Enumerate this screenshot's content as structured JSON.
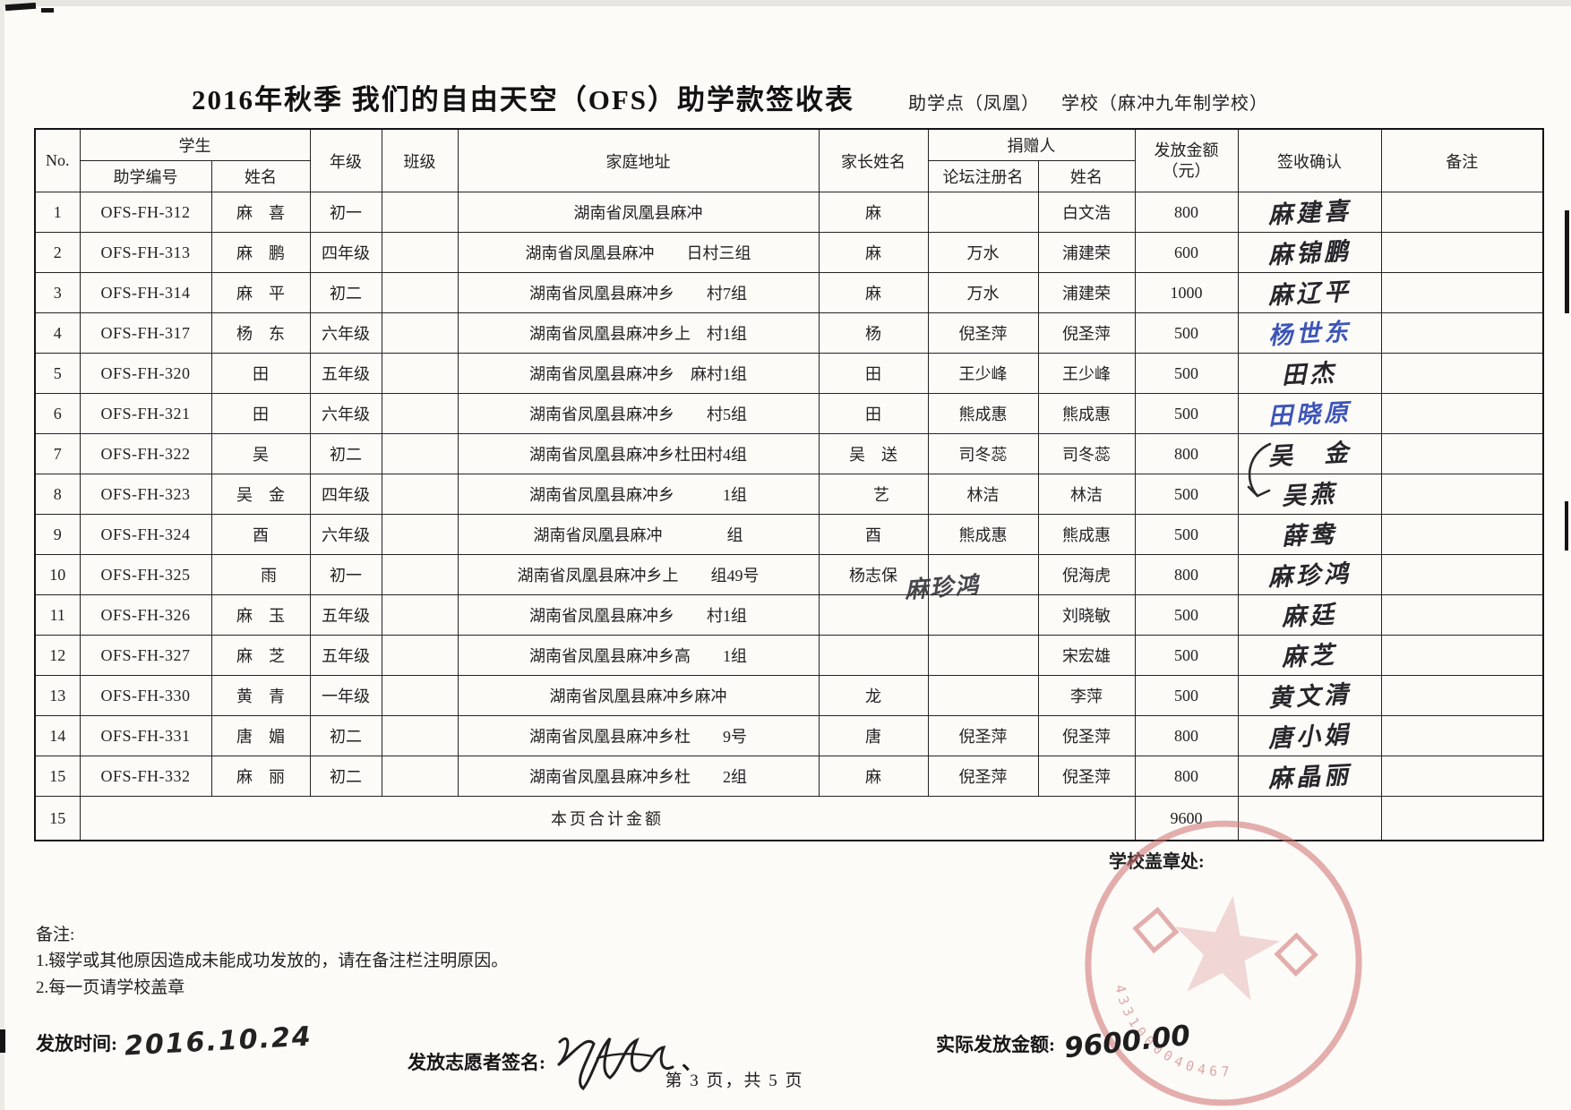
{
  "page": {
    "title": "2016年秋季 我们的自由天空（OFS）助学款签收表",
    "site_label": "助学点（凤凰）",
    "school_label": "学校（麻冲九年制学校）",
    "page_footer": "第 3 页，共 5 页"
  },
  "table": {
    "headers": {
      "no": "No.",
      "student": "学生",
      "student_id": "助学编号",
      "student_name": "姓名",
      "grade": "年级",
      "class": "班级",
      "address": "家庭地址",
      "parent_name": "家长姓名",
      "donor": "捐赠人",
      "donor_forum": "论坛注册名",
      "donor_name": "姓名",
      "amount_line1": "发放金额",
      "amount_line2": "（元）",
      "sign": "签收确认",
      "remark": "备注"
    },
    "rows": [
      {
        "no": "1",
        "id": "OFS-FH-312",
        "name": "麻　喜",
        "grade": "初一",
        "cls": "",
        "address": "湖南省凤凰县麻冲　　　　　",
        "parent": "麻　",
        "forum": "",
        "donor": "白文浩",
        "amount": "800",
        "signature": "麻建喜",
        "ink": "black",
        "remark": ""
      },
      {
        "no": "2",
        "id": "OFS-FH-313",
        "name": "麻　鹏",
        "grade": "四年级",
        "cls": "",
        "address": "湖南省凤凰县麻冲　　日村三组",
        "parent": "麻　",
        "forum": "万水",
        "donor": "浦建荣",
        "amount": "600",
        "signature": "麻锦鹏",
        "ink": "black",
        "remark": ""
      },
      {
        "no": "3",
        "id": "OFS-FH-314",
        "name": "麻　平",
        "grade": "初二",
        "cls": "",
        "address": "湖南省凤凰县麻冲乡　　村7组",
        "parent": "麻　",
        "forum": "万水",
        "donor": "浦建荣",
        "amount": "1000",
        "signature": "麻辽平",
        "ink": "black",
        "remark": ""
      },
      {
        "no": "4",
        "id": "OFS-FH-317",
        "name": "杨　东",
        "grade": "六年级",
        "cls": "",
        "address": "湖南省凤凰县麻冲乡上　村1组",
        "parent": "杨　",
        "forum": "倪圣萍",
        "donor": "倪圣萍",
        "amount": "500",
        "signature": "杨世东",
        "ink": "blue",
        "remark": ""
      },
      {
        "no": "5",
        "id": "OFS-FH-320",
        "name": "田　",
        "grade": "五年级",
        "cls": "",
        "address": "湖南省凤凰县麻冲乡　麻村1组",
        "parent": "田　",
        "forum": "王少峰",
        "donor": "王少峰",
        "amount": "500",
        "signature": "田杰",
        "ink": "black",
        "remark": ""
      },
      {
        "no": "6",
        "id": "OFS-FH-321",
        "name": "田　",
        "grade": "六年级",
        "cls": "",
        "address": "湖南省凤凰县麻冲乡　　村5组",
        "parent": "田　",
        "forum": "熊成惠",
        "donor": "熊成惠",
        "amount": "500",
        "signature": "田晓原",
        "ink": "blue",
        "remark": ""
      },
      {
        "no": "7",
        "id": "OFS-FH-322",
        "name": "吴　",
        "grade": "初二",
        "cls": "",
        "address": "湖南省凤凰县麻冲乡杜田村4组",
        "parent": "吴　送",
        "forum": "司冬蕊",
        "donor": "司冬蕊",
        "amount": "800",
        "signature": "吴　金",
        "ink": "black",
        "remark": ""
      },
      {
        "no": "8",
        "id": "OFS-FH-323",
        "name": "吴　金",
        "grade": "四年级",
        "cls": "",
        "address": "湖南省凤凰县麻冲乡　　　1组",
        "parent": "　艺",
        "forum": "林洁",
        "donor": "林洁",
        "amount": "500",
        "signature": "吴燕",
        "ink": "black",
        "remark": ""
      },
      {
        "no": "9",
        "id": "OFS-FH-324",
        "name": "酉　",
        "grade": "六年级",
        "cls": "",
        "address": "湖南省凤凰县麻冲　　　　组",
        "parent": "酉　",
        "forum": "熊成惠",
        "donor": "熊成惠",
        "amount": "500",
        "signature": "薛鸯",
        "ink": "black",
        "remark": ""
      },
      {
        "no": "10",
        "id": "OFS-FH-325",
        "name": "　雨",
        "grade": "初一",
        "cls": "",
        "address": "湖南省凤凰县麻冲乡上　　组49号",
        "parent": "杨志保",
        "forum": "",
        "forum_hw": "麻珍鸿",
        "donor": "倪海虎",
        "amount": "800",
        "signature": "麻珍鸿",
        "ink": "black",
        "remark": ""
      },
      {
        "no": "11",
        "id": "OFS-FH-326",
        "name": "麻　玉",
        "grade": "五年级",
        "cls": "",
        "address": "湖南省凤凰县麻冲乡　　村1组",
        "parent": "",
        "forum": "",
        "donor": "刘晓敏",
        "amount": "500",
        "signature": "麻廷",
        "ink": "black",
        "remark": ""
      },
      {
        "no": "12",
        "id": "OFS-FH-327",
        "name": "麻　芝",
        "grade": "五年级",
        "cls": "",
        "address": "湖南省凤凰县麻冲乡高　　1组",
        "parent": "",
        "forum": "",
        "donor": "宋宏雄",
        "amount": "500",
        "signature": "麻芝",
        "ink": "black",
        "remark": ""
      },
      {
        "no": "13",
        "id": "OFS-FH-330",
        "name": "黄　青",
        "grade": "一年级",
        "cls": "",
        "address": "湖南省凤凰县麻冲乡麻冲　　",
        "parent": "龙　",
        "forum": "",
        "donor": "李萍",
        "amount": "500",
        "signature": "黄文清",
        "ink": "black",
        "remark": ""
      },
      {
        "no": "14",
        "id": "OFS-FH-331",
        "name": "唐　媚",
        "grade": "初二",
        "cls": "",
        "address": "湖南省凤凰县麻冲乡杜　　9号",
        "parent": "唐　",
        "forum": "倪圣萍",
        "donor": "倪圣萍",
        "amount": "800",
        "signature": "唐小娟",
        "ink": "black",
        "remark": ""
      },
      {
        "no": "15",
        "id": "OFS-FH-332",
        "name": "麻　丽",
        "grade": "初二",
        "cls": "",
        "address": "湖南省凤凰县麻冲乡杜　　2组",
        "parent": "麻　",
        "forum": "倪圣萍",
        "donor": "倪圣萍",
        "amount": "800",
        "signature": "麻晶丽",
        "ink": "black",
        "remark": ""
      }
    ],
    "total": {
      "no": "15",
      "label": "本页合计金额",
      "amount": "9600"
    }
  },
  "notes": {
    "title": "备注:",
    "line1": "1.辍学或其他原因造成未能成功发放的，请在备注栏注明原因。",
    "line2": "2.每一页请学校盖章"
  },
  "footer": {
    "issue_time_label": "发放时间:",
    "issue_time_value": "2016.10.24",
    "volunteer_label": "发放志愿者签名:",
    "volunteer_comma": "、",
    "school_stamp_label": "学校盖章处:",
    "actual_amount_label": "实际发放金额:",
    "actual_amount_value": "9600.00"
  },
  "stamp": {
    "serial": "4331000040467",
    "color": "#cf6f6f"
  },
  "colors": {
    "blue_ink": "#3d55b8",
    "black_ink": "#26262b",
    "stamp_red": "#cf6f6f"
  }
}
